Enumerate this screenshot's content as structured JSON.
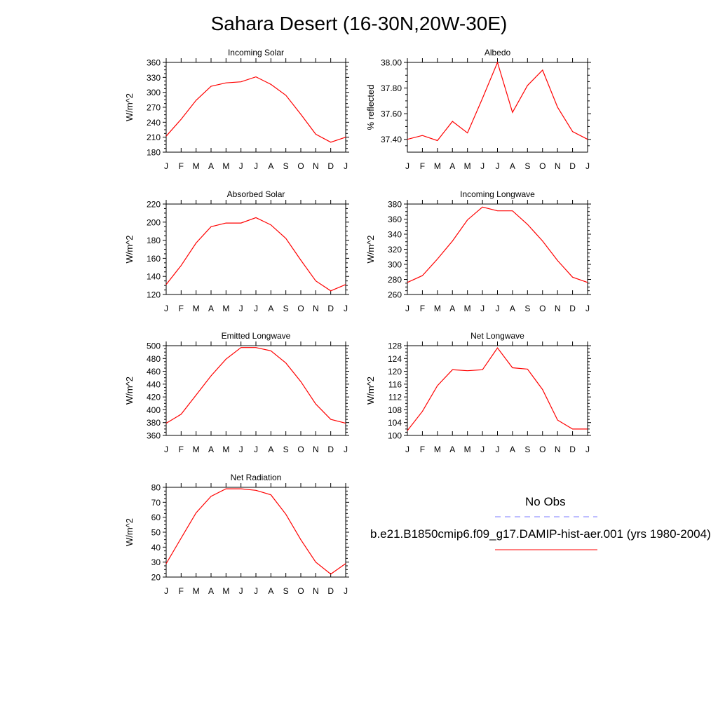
{
  "page": {
    "title": "Sahara Desert (16-30N,20W-30E)"
  },
  "legend": {
    "obs_label": "No Obs",
    "obs_color": "#7b7bff",
    "model_label": "b.e21.B1850cmip6.f09_g17.DAMIP-hist-aer.001 (yrs 1980-2004)",
    "model_color": "#ff0000"
  },
  "chart_data": [
    {
      "type": "line",
      "title": "Incoming Solar",
      "ylabel": "W/m^2",
      "months": [
        "J",
        "F",
        "M",
        "A",
        "M",
        "J",
        "J",
        "A",
        "S",
        "O",
        "N",
        "D",
        "J"
      ],
      "ylim": [
        180,
        360
      ],
      "yticks": [
        "360",
        "330",
        "300",
        "270",
        "240",
        "210",
        "180"
      ],
      "yticks_values": [
        360,
        330,
        300,
        270,
        240,
        210,
        180
      ],
      "values": [
        212,
        246,
        284,
        312,
        319,
        321,
        331,
        316,
        294,
        256,
        216,
        200,
        210
      ]
    },
    {
      "type": "line",
      "title": "Albedo",
      "ylabel": "% reflected",
      "months": [
        "J",
        "F",
        "M",
        "A",
        "M",
        "J",
        "J",
        "A",
        "S",
        "O",
        "N",
        "D",
        "J"
      ],
      "ylim": [
        37.3,
        38.0
      ],
      "yticks": [
        "38.00",
        "37.80",
        "37.60",
        "37.40"
      ],
      "yticks_values": [
        38.0,
        37.8,
        37.6,
        37.4
      ],
      "values": [
        37.4,
        37.43,
        37.39,
        37.54,
        37.45,
        37.72,
        38.0,
        37.61,
        37.82,
        37.94,
        37.65,
        37.46,
        37.4
      ]
    },
    {
      "type": "line",
      "title": "Absorbed Solar",
      "ylabel": "W/m^2",
      "months": [
        "J",
        "F",
        "M",
        "A",
        "M",
        "J",
        "J",
        "A",
        "S",
        "O",
        "N",
        "D",
        "J"
      ],
      "ylim": [
        120,
        220
      ],
      "yticks": [
        "220",
        "200",
        "180",
        "160",
        "140",
        "120"
      ],
      "yticks_values": [
        220,
        200,
        180,
        160,
        140,
        120
      ],
      "values": [
        131,
        152,
        177,
        195,
        199,
        199,
        205,
        197,
        182,
        158,
        135,
        124,
        131
      ]
    },
    {
      "type": "line",
      "title": "Incoming Longwave",
      "ylabel": "W/m^2",
      "months": [
        "J",
        "F",
        "M",
        "A",
        "M",
        "J",
        "J",
        "A",
        "S",
        "O",
        "N",
        "D",
        "J"
      ],
      "ylim": [
        260,
        380
      ],
      "yticks": [
        "380",
        "360",
        "340",
        "320",
        "300",
        "280",
        "260"
      ],
      "yticks_values": [
        380,
        360,
        340,
        320,
        300,
        280,
        260
      ],
      "values": [
        276,
        285,
        307,
        331,
        359,
        376,
        371,
        371,
        353,
        331,
        305,
        283,
        276
      ]
    },
    {
      "type": "line",
      "title": "Emitted Longwave",
      "ylabel": "W/m^2",
      "months": [
        "J",
        "F",
        "M",
        "A",
        "M",
        "J",
        "J",
        "A",
        "S",
        "O",
        "N",
        "D",
        "J"
      ],
      "ylim": [
        360,
        500
      ],
      "yticks": [
        "500",
        "480",
        "460",
        "440",
        "420",
        "400",
        "380",
        "360"
      ],
      "yticks_values": [
        500,
        480,
        460,
        440,
        420,
        400,
        380,
        360
      ],
      "values": [
        379,
        393,
        423,
        453,
        479,
        497,
        497,
        492,
        473,
        444,
        409,
        385,
        379
      ]
    },
    {
      "type": "line",
      "title": "Net Longwave",
      "ylabel": "W/m^2",
      "months": [
        "J",
        "F",
        "M",
        "A",
        "M",
        "J",
        "J",
        "A",
        "S",
        "O",
        "N",
        "D",
        "J"
      ],
      "ylim": [
        100,
        128
      ],
      "yticks": [
        "128",
        "124",
        "120",
        "116",
        "112",
        "108",
        "104",
        "100"
      ],
      "yticks_values": [
        128,
        124,
        120,
        116,
        112,
        108,
        104,
        100
      ],
      "values": [
        101.5,
        107.5,
        115.5,
        120.5,
        120.2,
        120.5,
        127.3,
        121.1,
        120.7,
        114.3,
        104.8,
        102,
        102
      ]
    },
    {
      "type": "line",
      "title": "Net Radiation",
      "ylabel": "W/m^2",
      "months": [
        "J",
        "F",
        "M",
        "A",
        "M",
        "J",
        "J",
        "A",
        "S",
        "O",
        "N",
        "D",
        "J"
      ],
      "ylim": [
        20,
        80
      ],
      "yticks": [
        "80",
        "70",
        "60",
        "50",
        "40",
        "30",
        "20"
      ],
      "yticks_values": [
        80,
        70,
        60,
        50,
        40,
        30,
        20
      ],
      "values": [
        29,
        46,
        63,
        74,
        79,
        79,
        78,
        75,
        62,
        45,
        30,
        22,
        29
      ]
    }
  ]
}
